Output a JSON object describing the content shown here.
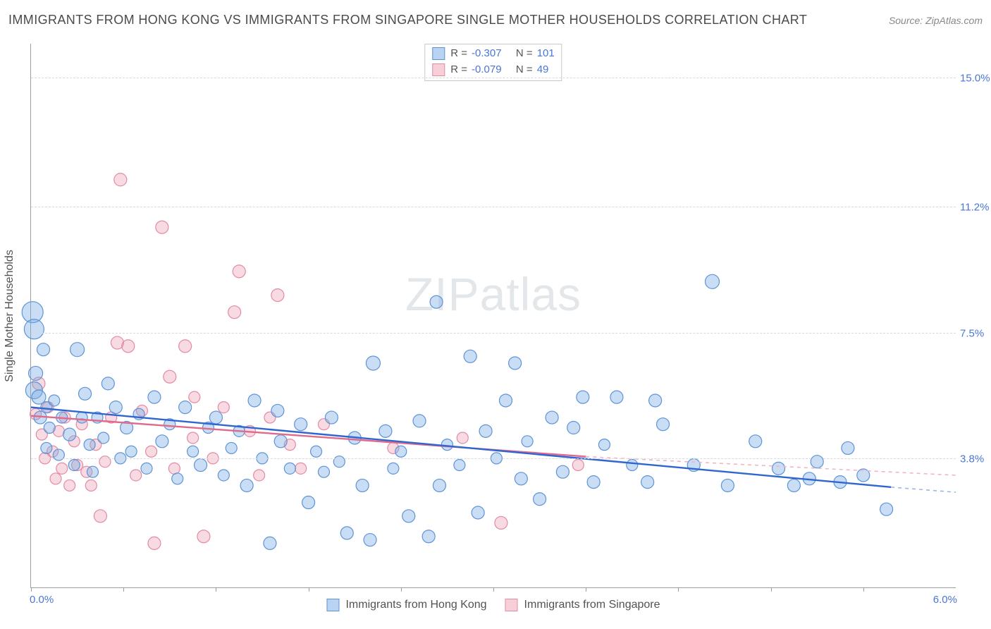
{
  "title": "IMMIGRANTS FROM HONG KONG VS IMMIGRANTS FROM SINGAPORE SINGLE MOTHER HOUSEHOLDS CORRELATION CHART",
  "source_prefix": "Source: ",
  "source_name": "ZipAtlas.com",
  "watermark_brand": "ZIP",
  "watermark_rest": "atlas",
  "y_axis_title": "Single Mother Households",
  "x_axis": {
    "min": 0.0,
    "max": 6.0,
    "label_min": "0.0%",
    "label_max": "6.0%",
    "ticks_at": [
      0.0,
      0.6,
      1.2,
      1.8,
      2.4,
      3.0,
      3.6,
      4.2,
      4.8,
      5.4
    ]
  },
  "y_axis": {
    "min": 0.0,
    "max": 16.0,
    "grid_at": [
      3.8,
      7.5,
      11.2,
      15.0
    ],
    "labels": [
      "3.8%",
      "7.5%",
      "11.2%",
      "15.0%"
    ]
  },
  "series": {
    "hk": {
      "label": "Immigrants from Hong Kong",
      "swatch_fill": "#b9d4f2",
      "swatch_stroke": "#5e94d6",
      "point_fill": "rgba(121,171,228,0.40)",
      "point_stroke": "#5e94d6",
      "R": "-0.307",
      "N": "101",
      "trend_color_solid": "#2f66d0",
      "trend_color_dash": "#9cb7e6",
      "trend": {
        "x1": 0.0,
        "y1": 5.3,
        "x_solid_end": 5.58,
        "y_solid_end": 2.95,
        "x_dash_end": 6.0,
        "y_dash_end": 2.8
      },
      "points": [
        {
          "x": 0.01,
          "y": 8.1,
          "r": 15
        },
        {
          "x": 0.02,
          "y": 7.6,
          "r": 14
        },
        {
          "x": 0.02,
          "y": 5.8,
          "r": 12
        },
        {
          "x": 0.03,
          "y": 6.3,
          "r": 10
        },
        {
          "x": 0.05,
          "y": 5.6,
          "r": 10
        },
        {
          "x": 0.06,
          "y": 5.0,
          "r": 9
        },
        {
          "x": 0.08,
          "y": 7.0,
          "r": 9
        },
        {
          "x": 0.1,
          "y": 5.3,
          "r": 8
        },
        {
          "x": 0.1,
          "y": 4.1,
          "r": 8
        },
        {
          "x": 0.12,
          "y": 4.7,
          "r": 8
        },
        {
          "x": 0.15,
          "y": 5.5,
          "r": 8
        },
        {
          "x": 1.62,
          "y": 4.3,
          "r": 9
        },
        {
          "x": 0.18,
          "y": 3.9,
          "r": 8
        },
        {
          "x": 0.2,
          "y": 5.0,
          "r": 8
        },
        {
          "x": 3.18,
          "y": 3.2,
          "r": 9
        },
        {
          "x": 2.65,
          "y": 3.0,
          "r": 9
        },
        {
          "x": 0.25,
          "y": 4.5,
          "r": 9
        },
        {
          "x": 0.28,
          "y": 3.6,
          "r": 8
        },
        {
          "x": 0.3,
          "y": 7.0,
          "r": 10
        },
        {
          "x": 0.33,
          "y": 5.0,
          "r": 8
        },
        {
          "x": 0.35,
          "y": 5.7,
          "r": 9
        },
        {
          "x": 0.38,
          "y": 4.2,
          "r": 8
        },
        {
          "x": 0.4,
          "y": 3.4,
          "r": 8
        },
        {
          "x": 0.43,
          "y": 5.0,
          "r": 8
        },
        {
          "x": 0.47,
          "y": 4.4,
          "r": 8
        },
        {
          "x": 0.5,
          "y": 6.0,
          "r": 9
        },
        {
          "x": 0.55,
          "y": 5.3,
          "r": 9
        },
        {
          "x": 0.58,
          "y": 3.8,
          "r": 8
        },
        {
          "x": 0.62,
          "y": 4.7,
          "r": 9
        },
        {
          "x": 0.65,
          "y": 4.0,
          "r": 8
        },
        {
          "x": 0.7,
          "y": 5.1,
          "r": 8
        },
        {
          "x": 0.75,
          "y": 3.5,
          "r": 8
        },
        {
          "x": 0.8,
          "y": 5.6,
          "r": 9
        },
        {
          "x": 0.85,
          "y": 4.3,
          "r": 9
        },
        {
          "x": 0.9,
          "y": 4.8,
          "r": 8
        },
        {
          "x": 0.95,
          "y": 3.2,
          "r": 8
        },
        {
          "x": 1.0,
          "y": 5.3,
          "r": 9
        },
        {
          "x": 1.05,
          "y": 4.0,
          "r": 8
        },
        {
          "x": 1.1,
          "y": 3.6,
          "r": 9
        },
        {
          "x": 1.15,
          "y": 4.7,
          "r": 8
        },
        {
          "x": 1.2,
          "y": 5.0,
          "r": 9
        },
        {
          "x": 1.25,
          "y": 3.3,
          "r": 8
        },
        {
          "x": 1.3,
          "y": 4.1,
          "r": 8
        },
        {
          "x": 1.35,
          "y": 4.6,
          "r": 8
        },
        {
          "x": 1.4,
          "y": 3.0,
          "r": 9
        },
        {
          "x": 1.45,
          "y": 5.5,
          "r": 9
        },
        {
          "x": 1.5,
          "y": 3.8,
          "r": 8
        },
        {
          "x": 1.55,
          "y": 1.3,
          "r": 9
        },
        {
          "x": 1.6,
          "y": 5.2,
          "r": 9
        },
        {
          "x": 1.68,
          "y": 3.5,
          "r": 8
        },
        {
          "x": 1.75,
          "y": 4.8,
          "r": 9
        },
        {
          "x": 1.8,
          "y": 2.5,
          "r": 9
        },
        {
          "x": 1.85,
          "y": 4.0,
          "r": 8
        },
        {
          "x": 1.9,
          "y": 3.4,
          "r": 8
        },
        {
          "x": 1.95,
          "y": 5.0,
          "r": 9
        },
        {
          "x": 2.0,
          "y": 3.7,
          "r": 8
        },
        {
          "x": 2.05,
          "y": 1.6,
          "r": 9
        },
        {
          "x": 2.1,
          "y": 4.4,
          "r": 9
        },
        {
          "x": 2.15,
          "y": 3.0,
          "r": 9
        },
        {
          "x": 2.22,
          "y": 6.6,
          "r": 10
        },
        {
          "x": 2.3,
          "y": 4.6,
          "r": 9
        },
        {
          "x": 2.35,
          "y": 3.5,
          "r": 8
        },
        {
          "x": 2.4,
          "y": 4.0,
          "r": 8
        },
        {
          "x": 2.45,
          "y": 2.1,
          "r": 9
        },
        {
          "x": 2.52,
          "y": 4.9,
          "r": 9
        },
        {
          "x": 2.58,
          "y": 1.5,
          "r": 9
        },
        {
          "x": 2.63,
          "y": 8.4,
          "r": 9
        },
        {
          "x": 2.7,
          "y": 4.2,
          "r": 8
        },
        {
          "x": 2.78,
          "y": 3.6,
          "r": 8
        },
        {
          "x": 2.85,
          "y": 6.8,
          "r": 9
        },
        {
          "x": 2.9,
          "y": 2.2,
          "r": 9
        },
        {
          "x": 2.95,
          "y": 4.6,
          "r": 9
        },
        {
          "x": 3.02,
          "y": 3.8,
          "r": 8
        },
        {
          "x": 3.08,
          "y": 5.5,
          "r": 9
        },
        {
          "x": 3.14,
          "y": 6.6,
          "r": 9
        },
        {
          "x": 2.2,
          "y": 1.4,
          "r": 9
        },
        {
          "x": 3.22,
          "y": 4.3,
          "r": 8
        },
        {
          "x": 3.3,
          "y": 2.6,
          "r": 9
        },
        {
          "x": 3.38,
          "y": 5.0,
          "r": 9
        },
        {
          "x": 3.45,
          "y": 3.4,
          "r": 9
        },
        {
          "x": 3.52,
          "y": 4.7,
          "r": 9
        },
        {
          "x": 3.58,
          "y": 5.6,
          "r": 9
        },
        {
          "x": 3.65,
          "y": 3.1,
          "r": 9
        },
        {
          "x": 3.72,
          "y": 4.2,
          "r": 8
        },
        {
          "x": 3.8,
          "y": 5.6,
          "r": 9
        },
        {
          "x": 3.9,
          "y": 3.6,
          "r": 8
        },
        {
          "x": 4.0,
          "y": 3.1,
          "r": 9
        },
        {
          "x": 4.1,
          "y": 4.8,
          "r": 9
        },
        {
          "x": 4.3,
          "y": 3.6,
          "r": 9
        },
        {
          "x": 4.42,
          "y": 9.0,
          "r": 10
        },
        {
          "x": 4.05,
          "y": 5.5,
          "r": 9
        },
        {
          "x": 4.52,
          "y": 3.0,
          "r": 9
        },
        {
          "x": 4.7,
          "y": 4.3,
          "r": 9
        },
        {
          "x": 4.85,
          "y": 3.5,
          "r": 9
        },
        {
          "x": 4.95,
          "y": 3.0,
          "r": 9
        },
        {
          "x": 5.1,
          "y": 3.7,
          "r": 9
        },
        {
          "x": 5.25,
          "y": 3.1,
          "r": 9
        },
        {
          "x": 5.4,
          "y": 3.3,
          "r": 9
        },
        {
          "x": 5.55,
          "y": 2.3,
          "r": 9
        },
        {
          "x": 5.3,
          "y": 4.1,
          "r": 9
        },
        {
          "x": 5.05,
          "y": 3.2,
          "r": 9
        }
      ]
    },
    "sg": {
      "label": "Immigrants from Singapore",
      "swatch_fill": "#f6cfd9",
      "swatch_stroke": "#e48aa3",
      "point_fill": "rgba(232,150,173,0.35)",
      "point_stroke": "#e48aa3",
      "R": "-0.079",
      "N": "49",
      "trend_color_solid": "#e06a8b",
      "trend_color_dash": "#f0b6c6",
      "trend": {
        "x1": 0.0,
        "y1": 5.05,
        "x_solid_end": 3.6,
        "y_solid_end": 3.85,
        "x_dash_end": 6.0,
        "y_dash_end": 3.3
      },
      "points": [
        {
          "x": 0.03,
          "y": 5.1,
          "r": 8
        },
        {
          "x": 0.05,
          "y": 6.0,
          "r": 9
        },
        {
          "x": 0.07,
          "y": 4.5,
          "r": 8
        },
        {
          "x": 0.09,
          "y": 3.8,
          "r": 8
        },
        {
          "x": 0.11,
          "y": 5.3,
          "r": 8
        },
        {
          "x": 0.14,
          "y": 4.0,
          "r": 8
        },
        {
          "x": 0.16,
          "y": 3.2,
          "r": 8
        },
        {
          "x": 0.18,
          "y": 4.6,
          "r": 8
        },
        {
          "x": 0.2,
          "y": 3.5,
          "r": 8
        },
        {
          "x": 0.22,
          "y": 5.0,
          "r": 8
        },
        {
          "x": 0.25,
          "y": 3.0,
          "r": 8
        },
        {
          "x": 0.28,
          "y": 4.3,
          "r": 8
        },
        {
          "x": 0.3,
          "y": 3.6,
          "r": 8
        },
        {
          "x": 0.33,
          "y": 4.8,
          "r": 8
        },
        {
          "x": 0.36,
          "y": 3.4,
          "r": 8
        },
        {
          "x": 0.39,
          "y": 3.0,
          "r": 8
        },
        {
          "x": 0.42,
          "y": 4.2,
          "r": 8
        },
        {
          "x": 0.45,
          "y": 2.1,
          "r": 9
        },
        {
          "x": 0.48,
          "y": 3.7,
          "r": 8
        },
        {
          "x": 0.52,
          "y": 5.0,
          "r": 8
        },
        {
          "x": 0.56,
          "y": 7.2,
          "r": 9
        },
        {
          "x": 0.58,
          "y": 12.0,
          "r": 9
        },
        {
          "x": 0.63,
          "y": 7.1,
          "r": 9
        },
        {
          "x": 0.68,
          "y": 3.3,
          "r": 8
        },
        {
          "x": 0.72,
          "y": 5.2,
          "r": 8
        },
        {
          "x": 0.78,
          "y": 4.0,
          "r": 8
        },
        {
          "x": 0.8,
          "y": 1.3,
          "r": 9
        },
        {
          "x": 0.85,
          "y": 10.6,
          "r": 9
        },
        {
          "x": 0.9,
          "y": 6.2,
          "r": 9
        },
        {
          "x": 0.93,
          "y": 3.5,
          "r": 8
        },
        {
          "x": 1.0,
          "y": 7.1,
          "r": 9
        },
        {
          "x": 1.05,
          "y": 4.4,
          "r": 8
        },
        {
          "x": 1.12,
          "y": 1.5,
          "r": 9
        },
        {
          "x": 1.18,
          "y": 3.8,
          "r": 8
        },
        {
          "x": 1.25,
          "y": 5.3,
          "r": 8
        },
        {
          "x": 1.32,
          "y": 8.1,
          "r": 9
        },
        {
          "x": 1.35,
          "y": 9.3,
          "r": 9
        },
        {
          "x": 1.06,
          "y": 5.6,
          "r": 8
        },
        {
          "x": 1.42,
          "y": 4.6,
          "r": 8
        },
        {
          "x": 1.48,
          "y": 3.3,
          "r": 8
        },
        {
          "x": 1.55,
          "y": 5.0,
          "r": 8
        },
        {
          "x": 1.6,
          "y": 8.6,
          "r": 9
        },
        {
          "x": 1.68,
          "y": 4.2,
          "r": 8
        },
        {
          "x": 1.75,
          "y": 3.5,
          "r": 8
        },
        {
          "x": 1.9,
          "y": 4.8,
          "r": 8
        },
        {
          "x": 2.35,
          "y": 4.1,
          "r": 8
        },
        {
          "x": 2.8,
          "y": 4.4,
          "r": 8
        },
        {
          "x": 3.05,
          "y": 1.9,
          "r": 9
        },
        {
          "x": 3.55,
          "y": 3.6,
          "r": 8
        }
      ]
    }
  },
  "legend_r_label": "R =",
  "legend_n_label": "N ="
}
